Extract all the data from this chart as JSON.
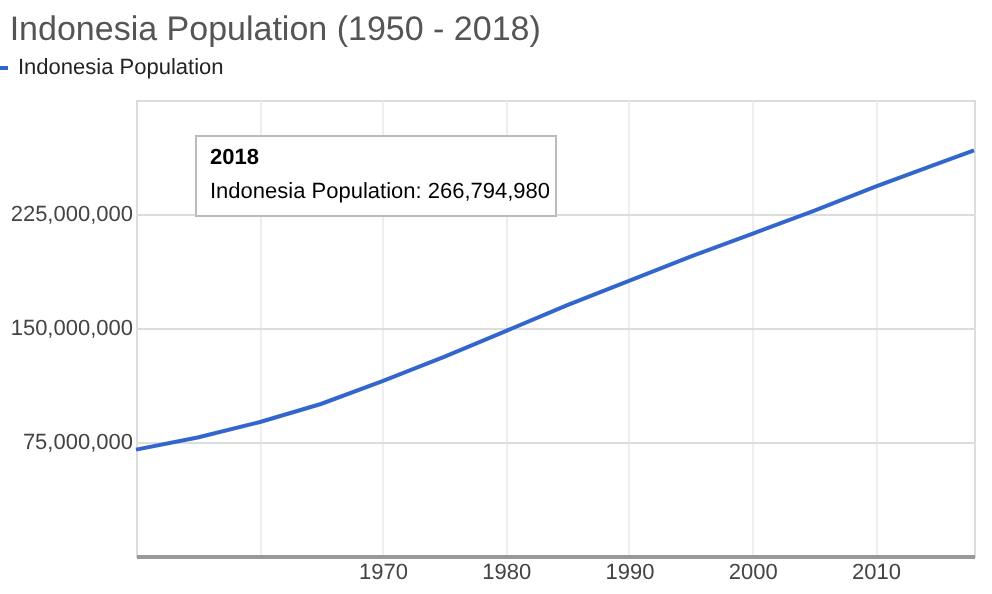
{
  "chart_data": {
    "type": "line",
    "title": "Indonesia Population (1950 - 2018)",
    "x": [
      1950,
      1955,
      1960,
      1965,
      1970,
      1975,
      1980,
      1985,
      1990,
      1995,
      2000,
      2005,
      2010,
      2015,
      2018
    ],
    "series": [
      {
        "name": "Indonesia Population",
        "color": "#3366cc",
        "values": [
          70000000,
          78000000,
          88000000,
          100000000,
          115000000,
          131000000,
          148000000,
          165000000,
          181000000,
          197000000,
          212000000,
          227000000,
          243000000,
          258000000,
          266794980
        ]
      }
    ],
    "xlim": [
      1950,
      2018
    ],
    "xticks": [
      {
        "value": 1960,
        "label": null
      },
      1970,
      1980,
      1990,
      2000,
      2010
    ],
    "ylim": [
      0,
      300000000
    ],
    "yticks": [
      {
        "value": 75000000,
        "label": "75,000,000"
      },
      {
        "value": 150000000,
        "label": "150,000,000"
      },
      {
        "value": 225000000,
        "label": "225,000,000"
      }
    ],
    "annotations": [
      "2018",
      "Indonesia Population: 266,794,980"
    ],
    "grid": true,
    "legend": "top left",
    "marker": "none",
    "line_style": "solid"
  }
}
